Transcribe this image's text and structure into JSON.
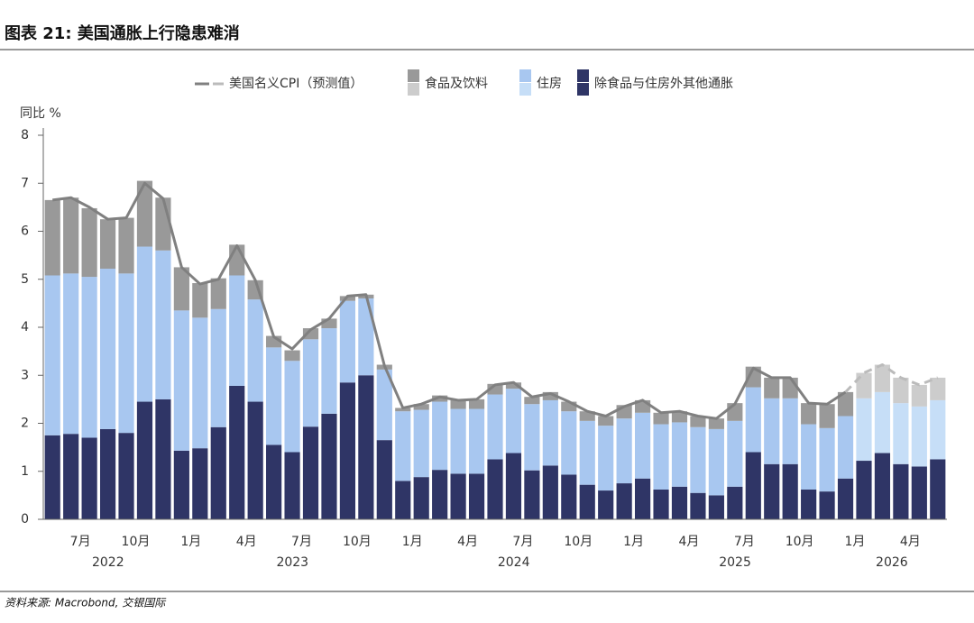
{
  "chart_data": {
    "type": "bar",
    "title": "图表 21: 美国通胀上行隐患难消",
    "source": "资料来源: Macrobond, 交银国际",
    "y_label": "同比 %",
    "stacked": true,
    "forecast_start_index": 44,
    "categories": [
      null,
      null,
      "7月",
      null,
      null,
      "10月",
      null,
      null,
      "1月",
      null,
      null,
      "4月",
      null,
      null,
      "7月",
      null,
      null,
      "10月",
      null,
      null,
      "1月",
      null,
      null,
      "4月",
      null,
      null,
      "7月",
      null,
      null,
      "10月",
      null,
      null,
      "1月",
      null,
      null,
      "4月",
      null,
      null,
      "7月",
      null,
      null,
      "10月",
      null,
      null,
      "1月",
      null,
      null,
      "4月",
      null
    ],
    "years": [
      "2022",
      "2023",
      "2024",
      "2025",
      "2026"
    ],
    "ylim": [
      0,
      8
    ],
    "yticks": [
      0,
      1,
      2,
      3,
      4,
      5,
      6,
      7,
      8
    ],
    "series": [
      {
        "name": "除食品与住房外其他通胀",
        "color": "#2f3566",
        "forecast_color": "#2f3566",
        "values": [
          1.75,
          1.78,
          1.7,
          1.88,
          1.8,
          2.45,
          2.5,
          1.43,
          1.48,
          1.92,
          2.78,
          2.45,
          1.55,
          1.4,
          1.93,
          2.2,
          2.85,
          3.0,
          1.65,
          0.8,
          0.88,
          1.03,
          0.95,
          0.95,
          1.25,
          1.38,
          1.02,
          1.12,
          0.93,
          0.72,
          0.6,
          0.75,
          0.85,
          0.62,
          0.68,
          0.55,
          0.5,
          0.68,
          1.4,
          1.15,
          1.15,
          0.62,
          0.58,
          0.85,
          1.22,
          1.38,
          1.15,
          1.1,
          1.25
        ]
      },
      {
        "name": "住房",
        "color": "#a8c7f0",
        "forecast_color": "#c6def7",
        "values": [
          3.33,
          3.34,
          3.35,
          3.34,
          3.32,
          3.23,
          3.1,
          2.92,
          2.72,
          2.46,
          2.3,
          2.13,
          2.03,
          1.9,
          1.82,
          1.78,
          1.7,
          1.6,
          1.47,
          1.45,
          1.4,
          1.42,
          1.35,
          1.35,
          1.35,
          1.34,
          1.38,
          1.36,
          1.32,
          1.33,
          1.35,
          1.35,
          1.37,
          1.36,
          1.34,
          1.37,
          1.38,
          1.37,
          1.35,
          1.37,
          1.37,
          1.36,
          1.32,
          1.3,
          1.3,
          1.27,
          1.27,
          1.25,
          1.23
        ]
      },
      {
        "name": "食品及饮料",
        "color": "#999999",
        "forecast_color": "#cccccc",
        "values": [
          1.57,
          1.58,
          1.43,
          1.03,
          1.16,
          1.37,
          1.1,
          0.9,
          0.72,
          0.64,
          0.64,
          0.4,
          0.24,
          0.22,
          0.23,
          0.2,
          0.1,
          0.08,
          0.1,
          0.07,
          0.12,
          0.13,
          0.18,
          0.2,
          0.22,
          0.13,
          0.15,
          0.17,
          0.2,
          0.2,
          0.2,
          0.28,
          0.26,
          0.24,
          0.23,
          0.23,
          0.22,
          0.37,
          0.43,
          0.43,
          0.43,
          0.44,
          0.5,
          0.5,
          0.53,
          0.57,
          0.53,
          0.45,
          0.47
        ]
      }
    ],
    "line": {
      "name": "美国名义CPI（预测值）",
      "color": "#808080",
      "forecast_color": "#bbbbbb",
      "values": [
        6.65,
        6.7,
        6.5,
        6.25,
        6.28,
        7.0,
        6.68,
        5.25,
        4.9,
        5.0,
        5.7,
        4.98,
        3.8,
        3.55,
        3.95,
        4.18,
        4.65,
        4.68,
        3.2,
        2.32,
        2.4,
        2.55,
        2.48,
        2.5,
        2.8,
        2.85,
        2.55,
        2.62,
        2.45,
        2.25,
        2.15,
        2.35,
        2.48,
        2.22,
        2.25,
        2.15,
        2.1,
        2.4,
        3.15,
        2.95,
        2.95,
        2.42,
        2.4,
        2.65,
        3.05,
        3.22,
        2.95,
        2.8,
        2.95
      ]
    }
  }
}
